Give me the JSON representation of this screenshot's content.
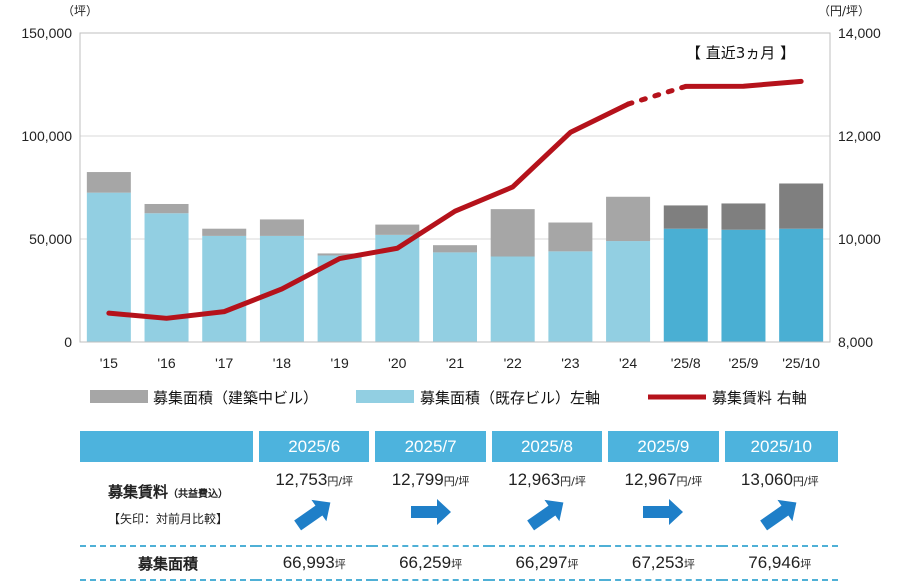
{
  "chart_data": {
    "type": "bar+line",
    "categories": [
      "'15",
      "'16",
      "'17",
      "'18",
      "'19",
      "'20",
      "'21",
      "'22",
      "'23",
      "'24",
      "'25/8",
      "'25/9",
      "'25/10"
    ],
    "series": [
      {
        "name": "募集面積（既存ビル）左軸",
        "type": "bar",
        "axis": "left",
        "values": [
          72500,
          62500,
          51500,
          51500,
          42000,
          52000,
          43500,
          41500,
          44000,
          49000,
          55000,
          54500,
          55000
        ]
      },
      {
        "name": "募集面積（建築中ビル）",
        "type": "bar",
        "axis": "left",
        "stacked_on": "既存ビル",
        "values": [
          10000,
          4500,
          3500,
          8000,
          1000,
          5000,
          3500,
          23000,
          14000,
          21500,
          11297,
          12753,
          21946
        ]
      },
      {
        "name": "募集賃料 右軸",
        "type": "line",
        "axis": "right",
        "values": [
          8560,
          8460,
          8590,
          9030,
          9620,
          9820,
          10540,
          11010,
          12070,
          12620,
          12963,
          12967,
          13060
        ]
      }
    ],
    "left_axis": {
      "unit": "（坪）",
      "min": 0,
      "max": 150000,
      "ticks": [
        "0",
        "50,000",
        "100,000",
        "150,000"
      ]
    },
    "right_axis": {
      "unit": "（円/坪）",
      "min": 8000,
      "max": 14000,
      "ticks": [
        "8,000",
        "10,000",
        "12,000",
        "14,000"
      ]
    },
    "recent_note": "【 直近3ヵ月 】",
    "legend": [
      "募集面積（建築中ビル）",
      "募集面積（既存ビル）左軸",
      "募集賃料 右軸"
    ],
    "colors": {
      "existing": "#92cfe2",
      "existing_recent": "#4aafd3",
      "construction": "#a6a6a6",
      "construction_recent": "#7f7f7f",
      "rent_line": "#b5121b",
      "arrow": "#1f7fc8"
    }
  },
  "table": {
    "months": [
      "2025/6",
      "2025/7",
      "2025/8",
      "2025/9",
      "2025/10"
    ],
    "rent_label": "募集賃料",
    "rent_sublabel": "（共益費込）",
    "arrow_note": "【矢印：対前月比較】",
    "rent_unit": "円/坪",
    "rents": [
      "12,753",
      "12,799",
      "12,963",
      "12,967",
      "13,060"
    ],
    "arrows": [
      "up",
      "flat",
      "up",
      "flat",
      "up"
    ],
    "area_label": "募集面積",
    "area_unit": "坪",
    "areas": [
      "66,993",
      "66,259",
      "66,297",
      "67,253",
      "76,946"
    ]
  }
}
